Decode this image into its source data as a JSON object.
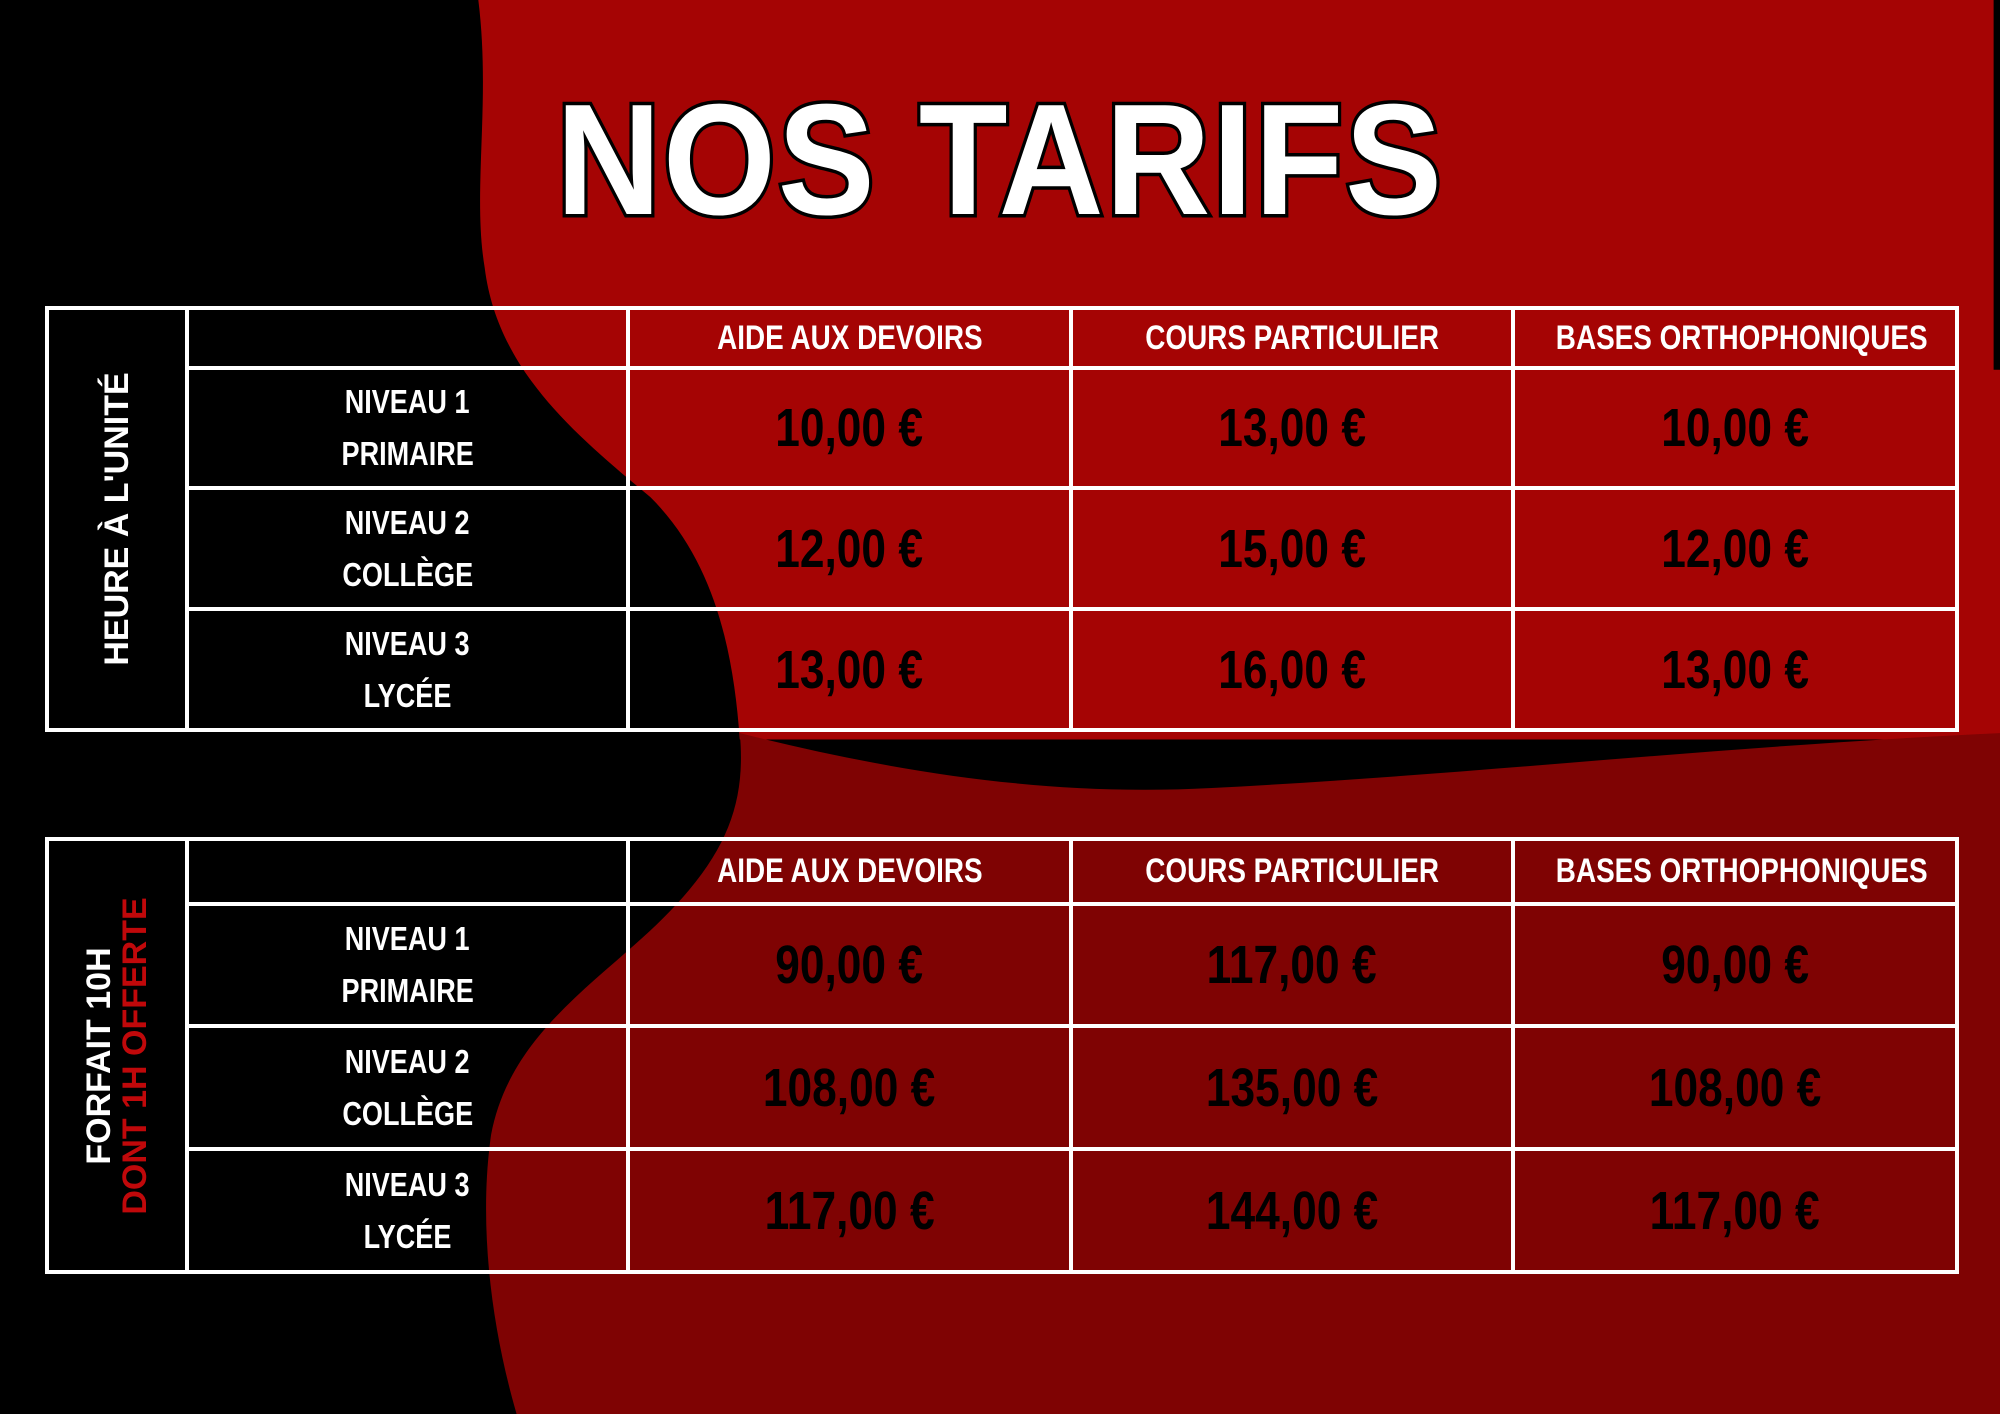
{
  "title": "NOS TARIFS",
  "colors": {
    "background": "#000000",
    "red": "#a50404",
    "dark_red": "#7f0303",
    "accent_text": "#c0080a"
  },
  "tables": [
    {
      "side_label": "HEURE À L'UNITÉ",
      "side_sublabel": "",
      "headers": [
        "AIDE AUX DEVOIRS",
        "COURS PARTICULIER",
        "BASES ORTHOPHONIQUES"
      ],
      "rows": [
        {
          "level": "NIVEAU 1",
          "school": "PRIMAIRE",
          "prices": [
            "10,00 €",
            "13,00 €",
            "10,00 €"
          ]
        },
        {
          "level": "NIVEAU 2",
          "school": "COLLÈGE",
          "prices": [
            "12,00 €",
            "15,00 €",
            "12,00 €"
          ]
        },
        {
          "level": "NIVEAU 3",
          "school": "LYCÉE",
          "prices": [
            "13,00 €",
            "16,00 €",
            "13,00 €"
          ]
        }
      ]
    },
    {
      "side_label": "FORFAIT 10H",
      "side_sublabel": "DONT 1H OFFERTE",
      "headers": [
        "AIDE AUX DEVOIRS",
        "COURS PARTICULIER",
        "BASES ORTHOPHONIQUES"
      ],
      "rows": [
        {
          "level": "NIVEAU 1",
          "school": "PRIMAIRE",
          "prices": [
            "90,00 €",
            "117,00 €",
            "90,00 €"
          ]
        },
        {
          "level": "NIVEAU 2",
          "school": "COLLÈGE",
          "prices": [
            "108,00 €",
            "135,00 €",
            "108,00 €"
          ]
        },
        {
          "level": "NIVEAU 3",
          "school": "LYCÉE",
          "prices": [
            "117,00 €",
            "144,00 €",
            "117,00 €"
          ]
        }
      ]
    }
  ]
}
